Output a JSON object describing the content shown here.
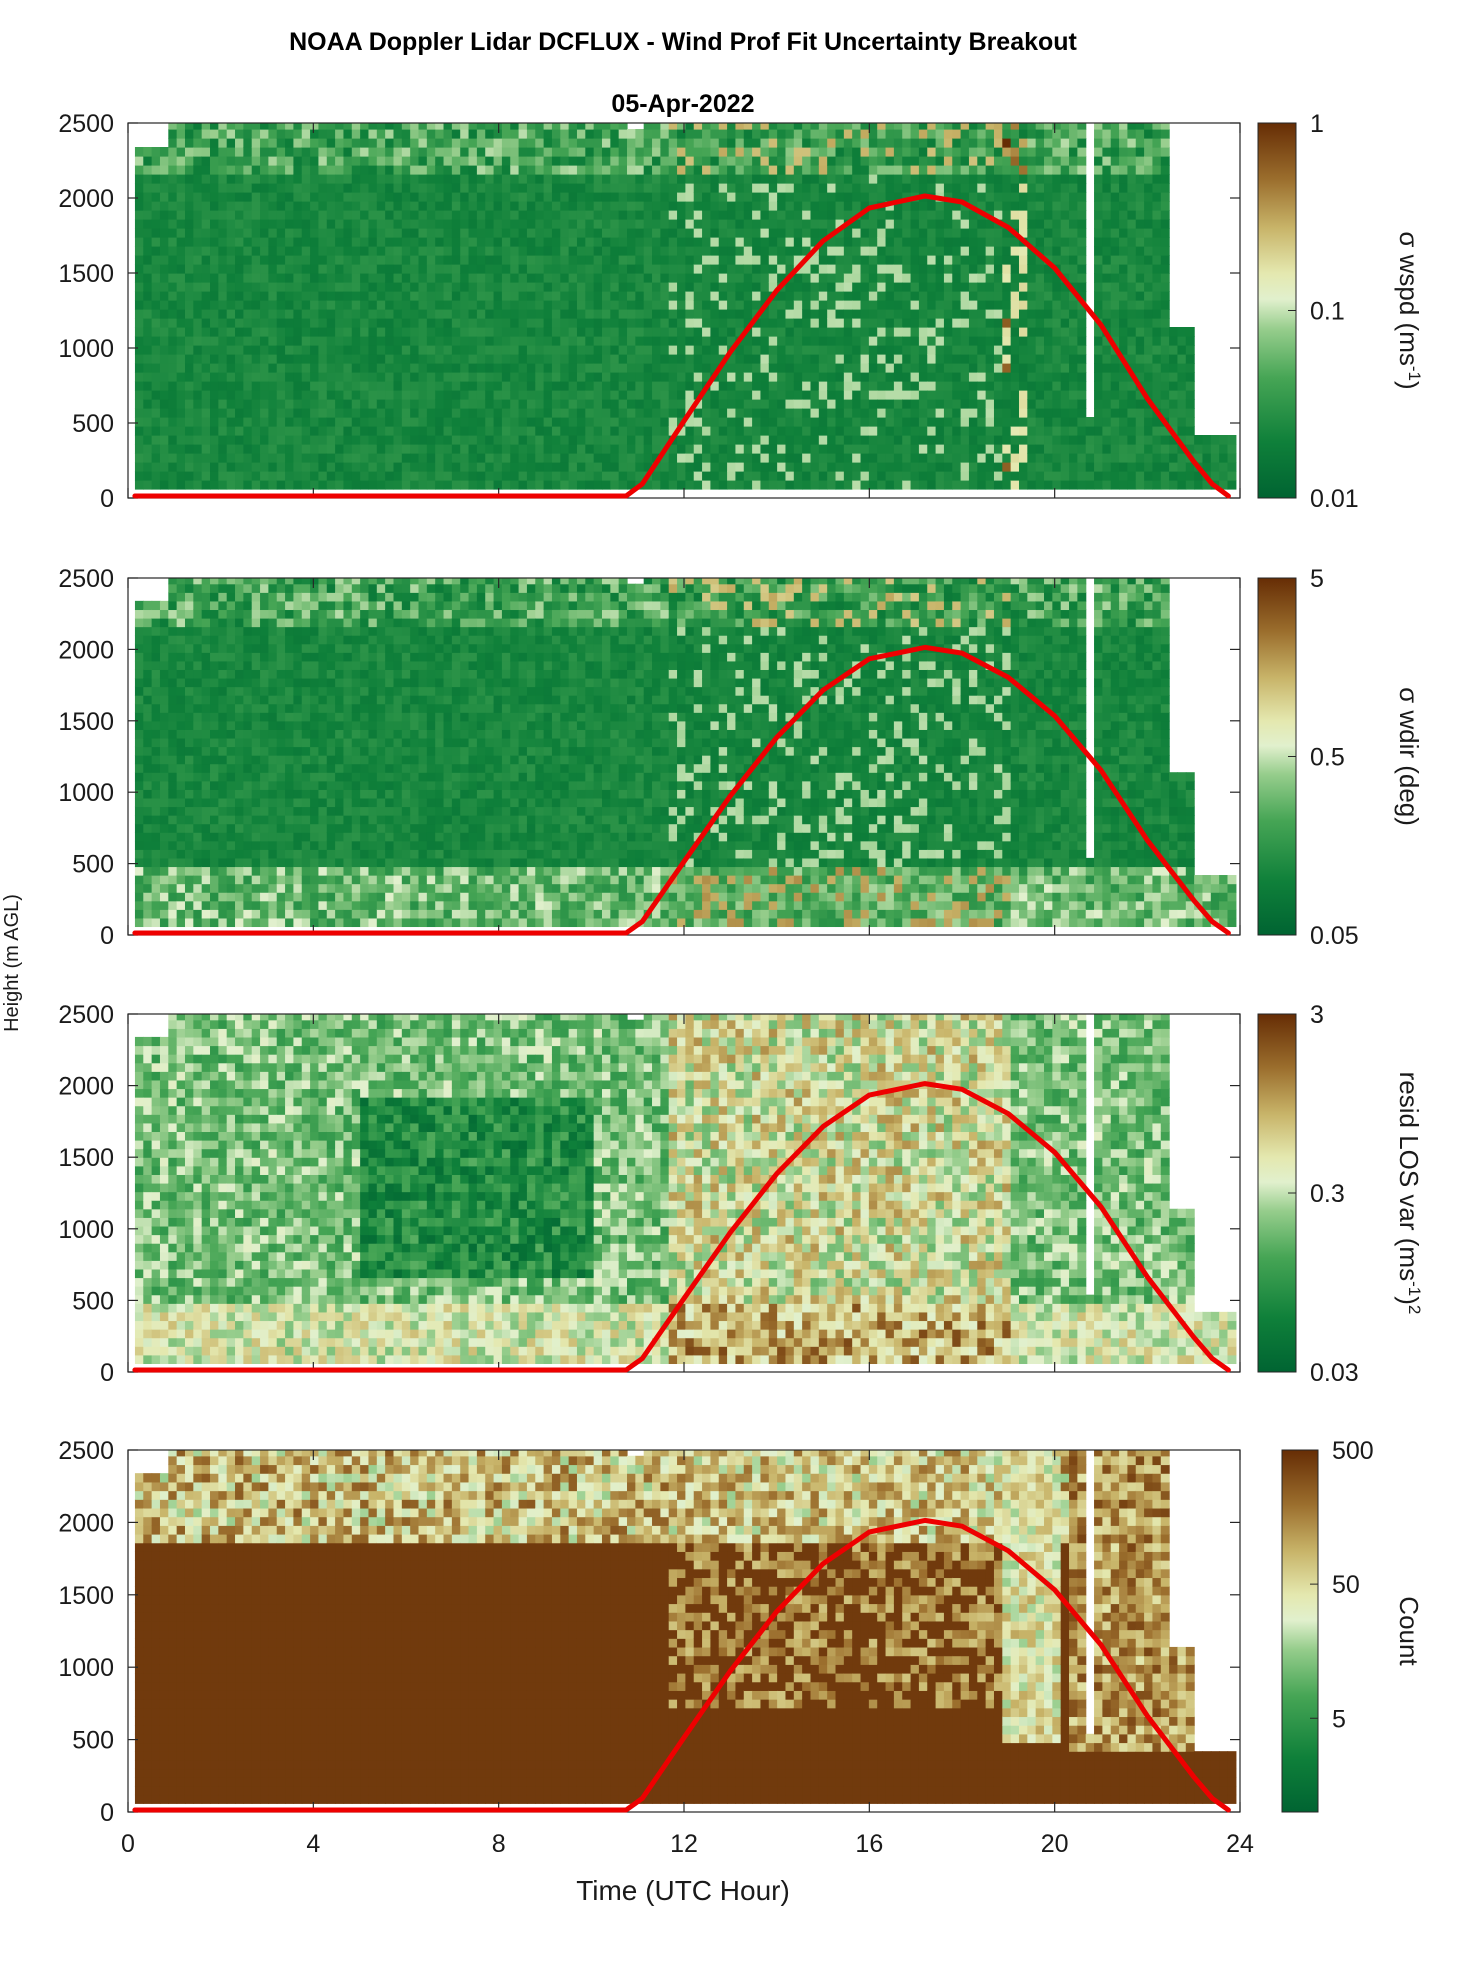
{
  "figure": {
    "title": "NOAA Doppler Lidar DCFLUX - Wind Prof Fit Uncertainty Breakout",
    "subtitle": "05-Apr-2022",
    "shared_ylabel": "Height (m AGL)"
  },
  "chart_data": [
    {
      "type": "heatmap",
      "panel": "sigma-wspd",
      "xlim": [
        0,
        24
      ],
      "ylim": [
        0,
        2500
      ],
      "y_ticks": [
        "2500",
        "2000",
        "1500",
        "1000",
        "500",
        "0"
      ],
      "colorbar": {
        "label_prefix": "σ wspd (ms",
        "label_sup": "-1",
        "label_suffix": ")",
        "scale": "log",
        "range": [
          0.01,
          1
        ],
        "ticks": [
          "1",
          "0.1",
          "0.01"
        ],
        "colormap": "green-to-brown"
      },
      "overlay_line_color": "#ee0000"
    },
    {
      "type": "heatmap",
      "panel": "sigma-wdir",
      "xlim": [
        0,
        24
      ],
      "ylim": [
        0,
        2500
      ],
      "y_ticks": [
        "2500",
        "2000",
        "1500",
        "1000",
        "500",
        "0"
      ],
      "colorbar": {
        "label_prefix": "σ wdir (deg)",
        "label_sup": "",
        "label_suffix": "",
        "scale": "log",
        "range": [
          0.05,
          5
        ],
        "ticks": [
          "5",
          "0.5",
          "0.05"
        ],
        "colormap": "green-to-brown"
      },
      "overlay_line_color": "#ee0000"
    },
    {
      "type": "heatmap",
      "panel": "resid-los-var",
      "xlim": [
        0,
        24
      ],
      "ylim": [
        0,
        2500
      ],
      "y_ticks": [
        "2500",
        "2000",
        "1500",
        "1000",
        "500",
        "0"
      ],
      "colorbar": {
        "label_prefix": "resid LOS var (ms",
        "label_sup": "-1",
        "label_suffix": ")",
        "label_sup2": "2",
        "scale": "log",
        "range": [
          0.03,
          3
        ],
        "ticks": [
          "3",
          "0.3",
          "0.03"
        ],
        "colormap": "green-to-brown"
      },
      "overlay_line_color": "#ee0000"
    },
    {
      "type": "heatmap",
      "panel": "count",
      "xlim": [
        0,
        24
      ],
      "ylim": [
        0,
        2500
      ],
      "y_ticks": [
        "2500",
        "2000",
        "1500",
        "1000",
        "500",
        "0"
      ],
      "x_ticks": [
        "0",
        "4",
        "8",
        "12",
        "16",
        "20",
        "24"
      ],
      "xlabel": "Time (UTC Hour)",
      "colorbar": {
        "label_prefix": "Count",
        "label_sup": "",
        "label_suffix": "",
        "scale": "log",
        "range": [
          1,
          500
        ],
        "ticks": [
          "500",
          "50",
          "5"
        ],
        "colormap": "green-to-brown"
      },
      "overlay_line_color": "#ee0000"
    }
  ],
  "overlay_curve": {
    "description_in_data_units": "solar-elevation style arc",
    "points": [
      [
        0.15,
        0
      ],
      [
        10.75,
        0
      ],
      [
        11.1,
        80
      ],
      [
        12,
        500
      ],
      [
        13,
        960
      ],
      [
        14,
        1370
      ],
      [
        15,
        1700
      ],
      [
        16,
        1920
      ],
      [
        17.2,
        2000
      ],
      [
        18,
        1960
      ],
      [
        19,
        1790
      ],
      [
        20,
        1520
      ],
      [
        21,
        1140
      ],
      [
        22,
        650
      ],
      [
        23,
        230
      ],
      [
        23.4,
        80
      ],
      [
        23.75,
        0
      ]
    ]
  },
  "colors": {
    "dark_green": "#006b36",
    "mid_green": "#56ad62",
    "light_green": "#cfe8b7",
    "pale": "#eef2c6",
    "tan": "#c9b063",
    "dark_brown": "#6b3007",
    "line_red": "#ee0000"
  }
}
